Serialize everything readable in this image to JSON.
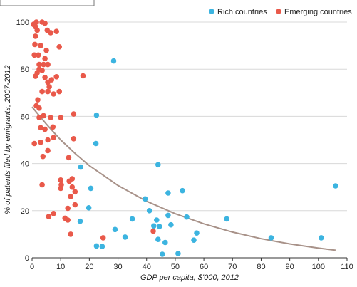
{
  "chart_data": {
    "type": "scatter",
    "title": "",
    "xlabel": "GDP per capita, $'000, 2012",
    "ylabel": "% of patents filed by emigrants, 2007-2012",
    "xlim": [
      0,
      110
    ],
    "ylim": [
      0,
      100
    ],
    "xticks": [
      0,
      10,
      20,
      30,
      40,
      50,
      60,
      70,
      80,
      90,
      100,
      110
    ],
    "yticks": [
      0,
      20,
      40,
      60,
      80,
      100
    ],
    "grid": "horizontal",
    "legend_position": "top-right",
    "series": [
      {
        "name": "Rich countries",
        "color": "#3cb4e0",
        "points": [
          [
            28.5,
            83.5
          ],
          [
            22.5,
            60.5
          ],
          [
            22.3,
            48.5
          ],
          [
            17,
            38.5
          ],
          [
            20.5,
            29.5
          ],
          [
            19.8,
            21.2
          ],
          [
            16.8,
            15.5
          ],
          [
            22.5,
            5
          ],
          [
            24.5,
            4.8
          ],
          [
            29,
            12
          ],
          [
            32.5,
            8.8
          ],
          [
            35,
            16.5
          ],
          [
            39.5,
            25
          ],
          [
            41,
            20
          ],
          [
            42.5,
            13.5
          ],
          [
            43.5,
            16
          ],
          [
            44,
            39.5
          ],
          [
            44.5,
            13.3
          ],
          [
            44,
            7.8
          ],
          [
            45.5,
            1.5
          ],
          [
            46.5,
            6.5
          ],
          [
            47.5,
            27.5
          ],
          [
            47.5,
            18
          ],
          [
            48.5,
            14
          ],
          [
            51,
            1.8
          ],
          [
            52.5,
            28.5
          ],
          [
            54,
            17.3
          ],
          [
            56.5,
            7.5
          ],
          [
            57.5,
            10.5
          ],
          [
            68,
            16.5
          ],
          [
            83.5,
            8.5
          ],
          [
            101,
            8.5
          ],
          [
            106,
            30.5
          ]
        ]
      },
      {
        "name": "Emerging countries",
        "color": "#e9594a",
        "points": [
          [
            0.5,
            99
          ],
          [
            1.2,
            98
          ],
          [
            1.5,
            100
          ],
          [
            1.8,
            96.5
          ],
          [
            3.5,
            100
          ],
          [
            4.5,
            99.5
          ],
          [
            5.3,
            96.5
          ],
          [
            6.5,
            95.5
          ],
          [
            8.5,
            96
          ],
          [
            1.2,
            94
          ],
          [
            1,
            90.5
          ],
          [
            3,
            90
          ],
          [
            5,
            88
          ],
          [
            9.5,
            89.5
          ],
          [
            0.8,
            86
          ],
          [
            2.2,
            86
          ],
          [
            4.5,
            84.5
          ],
          [
            2.5,
            82
          ],
          [
            4,
            82
          ],
          [
            5.5,
            82
          ],
          [
            2.5,
            80
          ],
          [
            1.8,
            78.5
          ],
          [
            3.5,
            79.5
          ],
          [
            4.5,
            76.5
          ],
          [
            1.2,
            77
          ],
          [
            5.5,
            74.5
          ],
          [
            6.8,
            75.5
          ],
          [
            8.5,
            76.8
          ],
          [
            17.8,
            77.2
          ],
          [
            6,
            72.5
          ],
          [
            3.5,
            70.5
          ],
          [
            9.5,
            70.5
          ],
          [
            7.5,
            69.5
          ],
          [
            5.5,
            70.5
          ],
          [
            2,
            67
          ],
          [
            1.5,
            64.5
          ],
          [
            2.5,
            63.5
          ],
          [
            4,
            60.3
          ],
          [
            2.5,
            59.5
          ],
          [
            10,
            59.5
          ],
          [
            6.5,
            59.5
          ],
          [
            14.5,
            61
          ],
          [
            4.5,
            54.5
          ],
          [
            7.3,
            55.5
          ],
          [
            3,
            55.2
          ],
          [
            0.8,
            48.5
          ],
          [
            3,
            49
          ],
          [
            5.5,
            50
          ],
          [
            7.5,
            51
          ],
          [
            14.5,
            50.5
          ],
          [
            5.5,
            45.5
          ],
          [
            3.8,
            43
          ],
          [
            12.8,
            42.5
          ],
          [
            10,
            33
          ],
          [
            10.2,
            31
          ],
          [
            13,
            32.5
          ],
          [
            14,
            33.5
          ],
          [
            3.5,
            31
          ],
          [
            14,
            30
          ],
          [
            15,
            28
          ],
          [
            10,
            29.5
          ],
          [
            13.5,
            26
          ],
          [
            12.5,
            21
          ],
          [
            15,
            22.5
          ],
          [
            7.5,
            18.8
          ],
          [
            5.8,
            17.5
          ],
          [
            11.5,
            16.8
          ],
          [
            12.5,
            16
          ],
          [
            24.8,
            8.5
          ],
          [
            13.5,
            10
          ],
          [
            42.3,
            11.3
          ]
        ]
      }
    ],
    "trendline": {
      "color": "#a89289",
      "type": "fitted curve",
      "points": [
        [
          0,
          64
        ],
        [
          5,
          56.7
        ],
        [
          10,
          50
        ],
        [
          15,
          44.3
        ],
        [
          20,
          39.1
        ],
        [
          30,
          30.7
        ],
        [
          40,
          24
        ],
        [
          50,
          18.7
        ],
        [
          60,
          14.4
        ],
        [
          70,
          10.9
        ],
        [
          80,
          8.1
        ],
        [
          90,
          5.9
        ],
        [
          100,
          4.1
        ],
        [
          106,
          3.2
        ]
      ]
    }
  }
}
